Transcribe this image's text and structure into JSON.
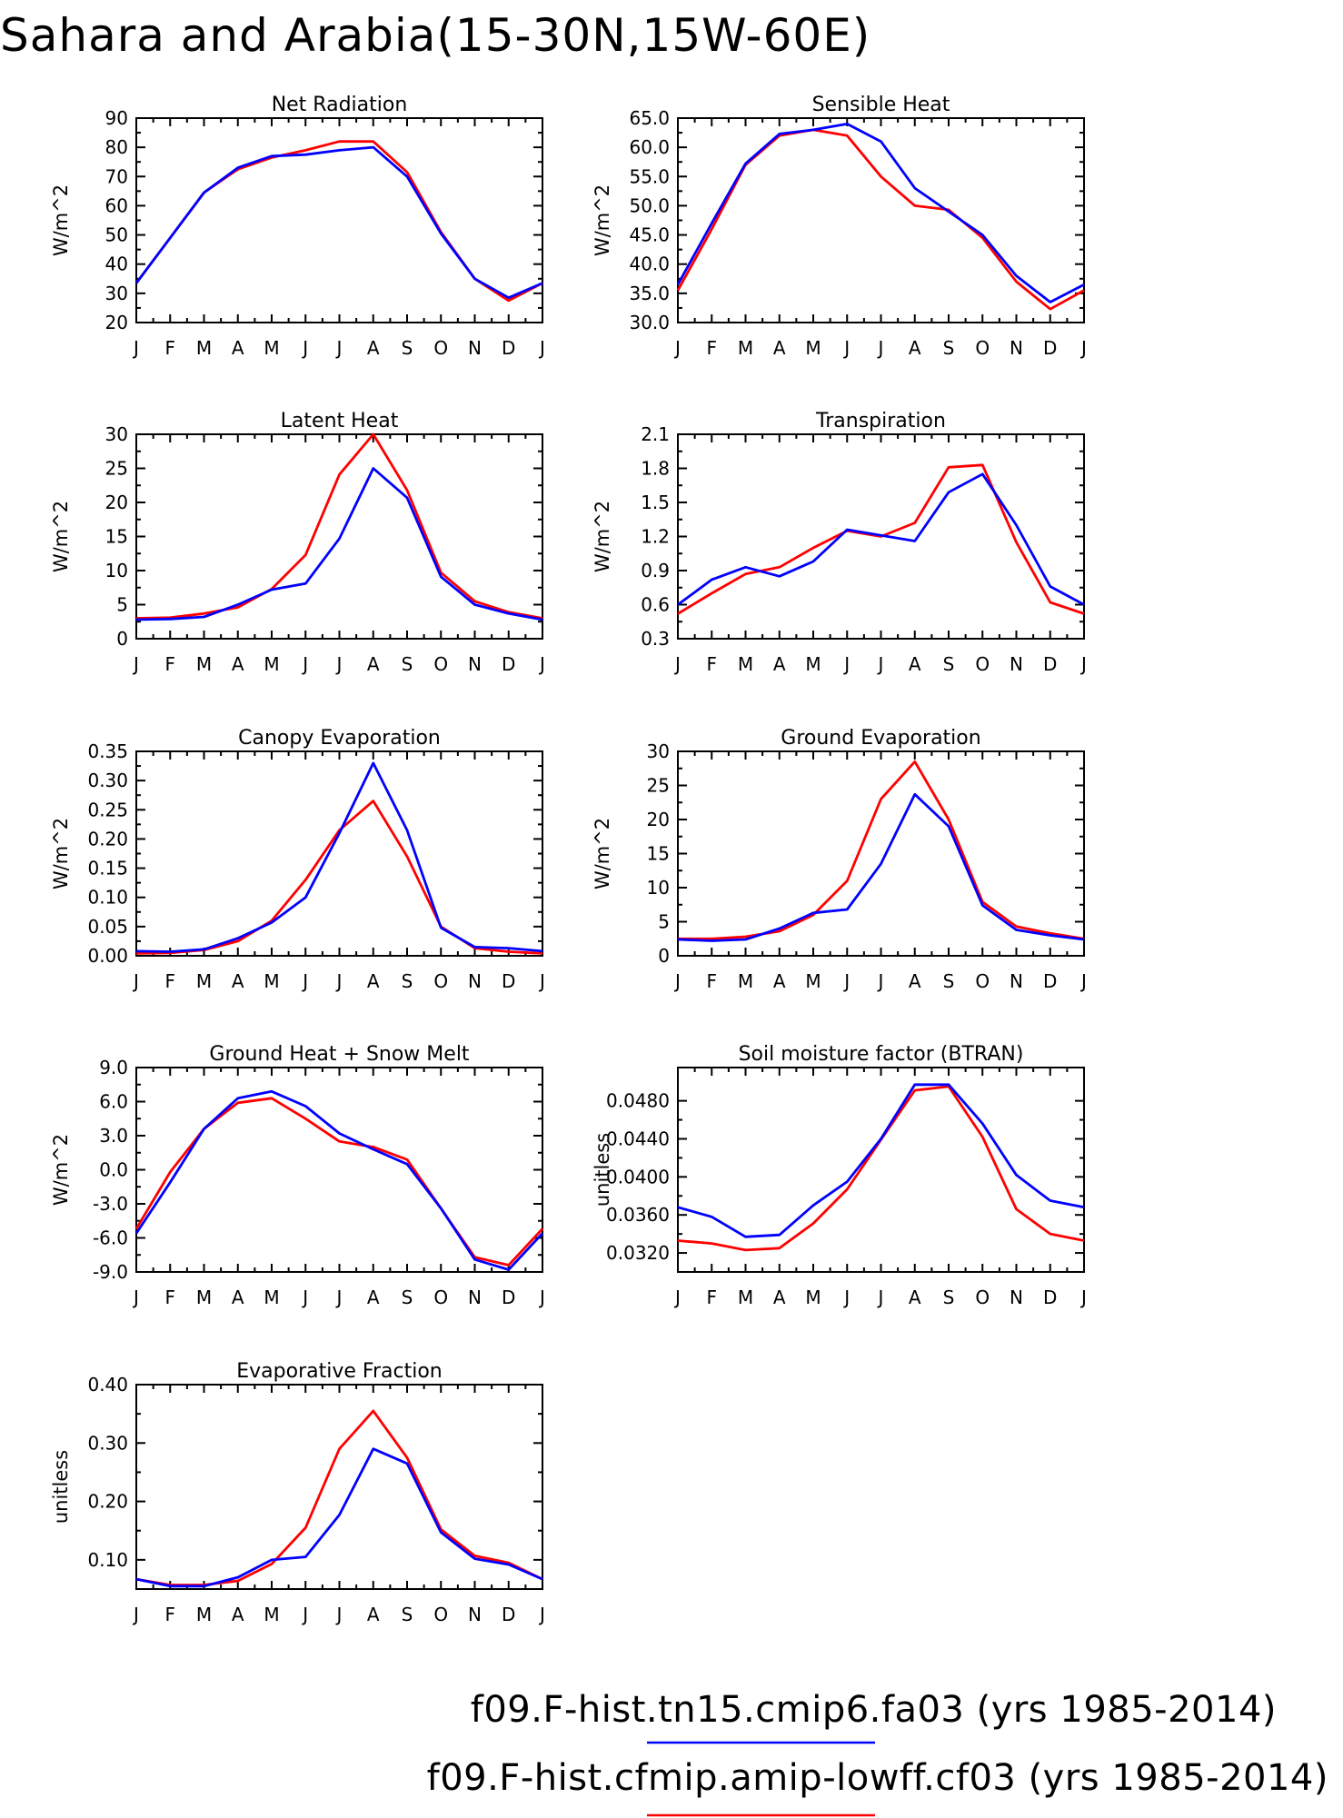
{
  "figure": {
    "title": "Sahara and Arabia(15-30N,15W-60E)",
    "legend": [
      {
        "label": "f09.F-hist.tn15.cmip6.fa03 (yrs 1985-2014)",
        "color": "#0000ff"
      },
      {
        "label": "f09.F-hist.cfmip.amip-lowff.cf03 (yrs 1985-2014)",
        "color": "#ff0000"
      }
    ]
  },
  "chart_data": [
    {
      "type": "line",
      "title": "Net Radiation",
      "ylabel": "W/m^2",
      "categories": [
        "J",
        "F",
        "M",
        "A",
        "M",
        "J",
        "J",
        "A",
        "S",
        "O",
        "N",
        "D",
        "J"
      ],
      "ylim": [
        20,
        90
      ],
      "yticks": [
        "20",
        "30",
        "40",
        "50",
        "60",
        "70",
        "80",
        "90"
      ],
      "series": [
        {
          "color": "#ff0000",
          "values": [
            33.5,
            49,
            64.5,
            72.5,
            76.5,
            79,
            82,
            82,
            71.5,
            51,
            35,
            27.5,
            33.5
          ]
        },
        {
          "color": "#0000ff",
          "values": [
            33.5,
            49,
            64.5,
            73,
            77,
            77.5,
            79,
            80,
            70,
            50.5,
            35,
            28.5,
            33.5
          ]
        }
      ]
    },
    {
      "type": "line",
      "title": "Sensible Heat",
      "ylabel": "W/m^2",
      "categories": [
        "J",
        "F",
        "M",
        "A",
        "M",
        "J",
        "J",
        "A",
        "S",
        "O",
        "N",
        "D",
        "J"
      ],
      "ylim": [
        30,
        65
      ],
      "yticks": [
        "30.0",
        "35.0",
        "40.0",
        "45.0",
        "50.0",
        "55.0",
        "60.0",
        "65.0"
      ],
      "series": [
        {
          "color": "#ff0000",
          "values": [
            35.5,
            46,
            57,
            62,
            63,
            62,
            55,
            50,
            49.3,
            44.5,
            37,
            32.3,
            35.5
          ]
        },
        {
          "color": "#0000ff",
          "values": [
            36.5,
            47,
            57.2,
            62.3,
            63,
            64,
            61,
            53,
            49,
            45,
            38,
            33.5,
            36.5
          ]
        }
      ]
    },
    {
      "type": "line",
      "title": "Latent Heat",
      "ylabel": "W/m^2",
      "categories": [
        "J",
        "F",
        "M",
        "A",
        "M",
        "J",
        "J",
        "A",
        "S",
        "O",
        "N",
        "D",
        "J"
      ],
      "ylim": [
        0,
        30
      ],
      "yticks": [
        "0",
        "5",
        "10",
        "15",
        "20",
        "25",
        "30"
      ],
      "series": [
        {
          "color": "#ff0000",
          "values": [
            3,
            3.1,
            3.7,
            4.6,
            7.3,
            12.3,
            24.1,
            30,
            21.8,
            9.7,
            5.5,
            3.9,
            3
          ]
        },
        {
          "color": "#0000ff",
          "values": [
            2.8,
            2.9,
            3.2,
            5,
            7.2,
            8.1,
            14.7,
            25,
            20.7,
            9.1,
            5,
            3.7,
            2.8
          ]
        }
      ]
    },
    {
      "type": "line",
      "title": "Transpiration",
      "ylabel": "W/m^2",
      "categories": [
        "J",
        "F",
        "M",
        "A",
        "M",
        "J",
        "J",
        "A",
        "S",
        "O",
        "N",
        "D",
        "J"
      ],
      "ylim": [
        0.3,
        2.1
      ],
      "yticks": [
        "0.3",
        "0.6",
        "0.9",
        "1.2",
        "1.5",
        "1.8",
        "2.1"
      ],
      "series": [
        {
          "color": "#ff0000",
          "values": [
            0.52,
            0.7,
            0.87,
            0.93,
            1.1,
            1.25,
            1.2,
            1.32,
            1.81,
            1.83,
            1.15,
            0.62,
            0.52
          ]
        },
        {
          "color": "#0000ff",
          "values": [
            0.6,
            0.82,
            0.93,
            0.85,
            0.98,
            1.26,
            1.21,
            1.16,
            1.59,
            1.75,
            1.3,
            0.76,
            0.6
          ]
        }
      ]
    },
    {
      "type": "line",
      "title": "Canopy Evaporation",
      "ylabel": "W/m^2",
      "categories": [
        "J",
        "F",
        "M",
        "A",
        "M",
        "J",
        "J",
        "A",
        "S",
        "O",
        "N",
        "D",
        "J"
      ],
      "ylim": [
        0,
        0.35
      ],
      "yticks": [
        "0.00",
        "0.05",
        "0.10",
        "0.15",
        "0.20",
        "0.25",
        "0.30",
        "0.35"
      ],
      "series": [
        {
          "color": "#ff0000",
          "values": [
            0.004,
            0.005,
            0.01,
            0.025,
            0.06,
            0.13,
            0.215,
            0.265,
            0.17,
            0.05,
            0.013,
            0.007,
            0.004
          ]
        },
        {
          "color": "#0000ff",
          "values": [
            0.008,
            0.007,
            0.011,
            0.03,
            0.057,
            0.1,
            0.21,
            0.33,
            0.215,
            0.048,
            0.015,
            0.013,
            0.008
          ]
        }
      ]
    },
    {
      "type": "line",
      "title": "Ground Evaporation",
      "ylabel": "W/m^2",
      "categories": [
        "J",
        "F",
        "M",
        "A",
        "M",
        "J",
        "J",
        "A",
        "S",
        "O",
        "N",
        "D",
        "J"
      ],
      "ylim": [
        0,
        30
      ],
      "yticks": [
        "0",
        "5",
        "10",
        "15",
        "20",
        "25",
        "30"
      ],
      "series": [
        {
          "color": "#ff0000",
          "values": [
            2.5,
            2.5,
            2.8,
            3.6,
            6,
            11,
            23,
            28.5,
            20,
            7.9,
            4.3,
            3.3,
            2.5
          ]
        },
        {
          "color": "#0000ff",
          "values": [
            2.4,
            2.2,
            2.4,
            4,
            6.3,
            6.8,
            13.5,
            23.7,
            19,
            7.4,
            3.8,
            3,
            2.4
          ]
        }
      ]
    },
    {
      "type": "line",
      "title": "Ground Heat + Snow Melt",
      "ylabel": "W/m^2",
      "categories": [
        "J",
        "F",
        "M",
        "A",
        "M",
        "J",
        "J",
        "A",
        "S",
        "O",
        "N",
        "D",
        "J"
      ],
      "ylim": [
        -9,
        9
      ],
      "yticks": [
        "-9.0",
        "-6.0",
        "-3.0",
        "0.0",
        "3.0",
        "6.0",
        "9.0"
      ],
      "series": [
        {
          "color": "#ff0000",
          "values": [
            -5.2,
            -0.2,
            3.6,
            5.9,
            6.3,
            4.5,
            2.5,
            2,
            0.9,
            -3.4,
            -7.7,
            -8.4,
            -5.2
          ]
        },
        {
          "color": "#0000ff",
          "values": [
            -5.6,
            -1.1,
            3.6,
            6.3,
            6.9,
            5.6,
            3.2,
            1.8,
            0.5,
            -3.4,
            -7.9,
            -8.8,
            -5.6
          ]
        }
      ]
    },
    {
      "type": "line",
      "title": "Soil moisture factor (BTRAN)",
      "ylabel": "unitless",
      "categories": [
        "J",
        "F",
        "M",
        "A",
        "M",
        "J",
        "J",
        "A",
        "S",
        "O",
        "N",
        "D",
        "J"
      ],
      "ylim": [
        0.03,
        0.0515
      ],
      "yticks": [
        "0.0320",
        "0.0360",
        "0.0400",
        "0.0440",
        "0.0480"
      ],
      "ytick_values": [
        0.032,
        0.036,
        0.04,
        0.044,
        0.048
      ],
      "series": [
        {
          "color": "#ff0000",
          "values": [
            0.0333,
            0.033,
            0.0323,
            0.0325,
            0.0351,
            0.0387,
            0.0439,
            0.0491,
            0.0495,
            0.0442,
            0.0366,
            0.034,
            0.0333
          ]
        },
        {
          "color": "#0000ff",
          "values": [
            0.0368,
            0.0358,
            0.0337,
            0.0339,
            0.037,
            0.0395,
            0.044,
            0.0497,
            0.0497,
            0.0456,
            0.0402,
            0.0375,
            0.0368
          ]
        }
      ]
    },
    {
      "type": "line",
      "title": "Evaporative Fraction",
      "ylabel": "unitless",
      "categories": [
        "J",
        "F",
        "M",
        "A",
        "M",
        "J",
        "J",
        "A",
        "S",
        "O",
        "N",
        "D",
        "J"
      ],
      "ylim": [
        0.05,
        0.4
      ],
      "yticks": [
        "0.10",
        "0.20",
        "0.30",
        "0.40"
      ],
      "ytick_values": [
        0.1,
        0.2,
        0.3,
        0.4
      ],
      "series": [
        {
          "color": "#ff0000",
          "values": [
            0.067,
            0.057,
            0.057,
            0.064,
            0.093,
            0.155,
            0.29,
            0.355,
            0.275,
            0.152,
            0.107,
            0.095,
            0.067
          ]
        },
        {
          "color": "#0000ff",
          "values": [
            0.067,
            0.055,
            0.055,
            0.07,
            0.1,
            0.105,
            0.177,
            0.29,
            0.265,
            0.147,
            0.102,
            0.092,
            0.067
          ]
        }
      ]
    }
  ]
}
